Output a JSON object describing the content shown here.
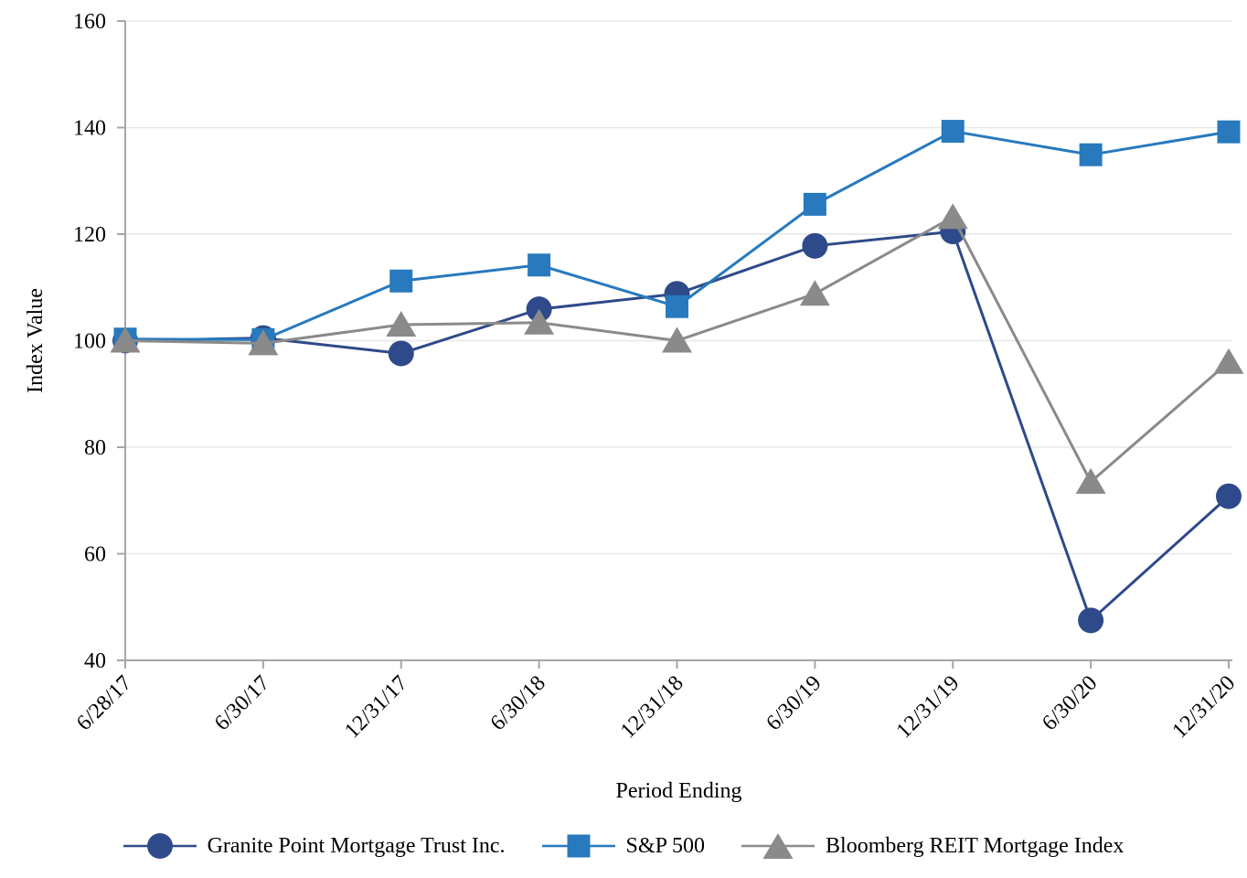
{
  "chart_data": {
    "type": "line",
    "title": "",
    "xlabel": "Period Ending",
    "ylabel": "Index Value",
    "categories": [
      "6/28/17",
      "6/30/17",
      "12/31/17",
      "6/30/18",
      "12/31/18",
      "6/30/19",
      "12/31/19",
      "6/30/20",
      "12/31/20"
    ],
    "ylim": [
      40,
      160
    ],
    "yticks": [
      40,
      60,
      80,
      100,
      120,
      140,
      160
    ],
    "grid": true,
    "legend_position": "bottom",
    "series": [
      {
        "name": "Granite Point Mortgage Trust Inc.",
        "marker": "circle",
        "color": "#2E4A8A",
        "values": [
          100,
          100.5,
          97.6,
          105.9,
          108.8,
          117.8,
          120.5,
          47.5,
          70.8
        ]
      },
      {
        "name": "S&P 500",
        "marker": "square",
        "color": "#2879BD",
        "values": [
          100.3,
          100.2,
          111.2,
          114.2,
          106.4,
          125.6,
          139.3,
          134.9,
          139.2
        ]
      },
      {
        "name": "Bloomberg REIT Mortgage Index",
        "marker": "triangle",
        "color": "#8A8A8A",
        "values": [
          100,
          99.5,
          103,
          103.4,
          100,
          108.8,
          123.2,
          73.5,
          96
        ]
      }
    ]
  },
  "styles": {
    "axis_color": "#A6A6A6",
    "grid_color": "#E7E7E7",
    "text_color": "#000000"
  }
}
